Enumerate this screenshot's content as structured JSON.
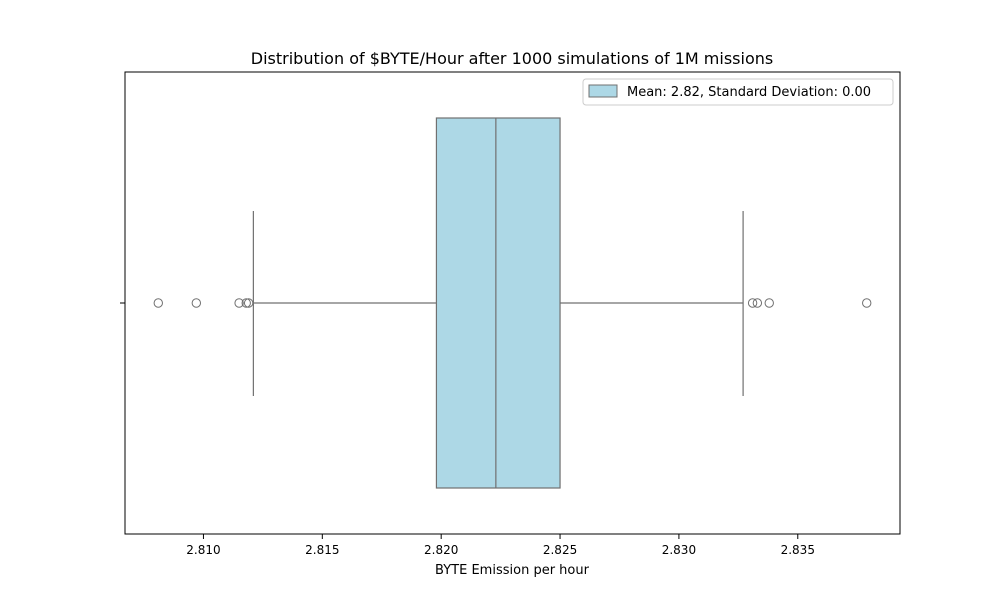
{
  "chart_data": {
    "type": "box",
    "title": "Distribution of $BYTE/Hour after 1000 simulations of 1M missions",
    "xlabel": "BYTE Emission per hour",
    "ylabel": "",
    "xlim": [
      2.8067,
      2.8393
    ],
    "xticks": [
      "2.810",
      "2.815",
      "2.820",
      "2.825",
      "2.830",
      "2.835"
    ],
    "grid": false,
    "legend": {
      "placement": "top-right",
      "label": "Mean: 2.82, Standard Deviation: 0.00"
    },
    "colors": {
      "box_fill": "#add8e6",
      "line": "#707070"
    },
    "box": {
      "whisker_low": 2.8121,
      "q1": 2.8198,
      "median": 2.8223,
      "q3": 2.825,
      "whisker_high": 2.8327
    },
    "outliers": [
      2.8081,
      2.8097,
      2.8115,
      2.8118,
      2.8119,
      2.8331,
      2.8333,
      2.8338,
      2.8379
    ]
  }
}
